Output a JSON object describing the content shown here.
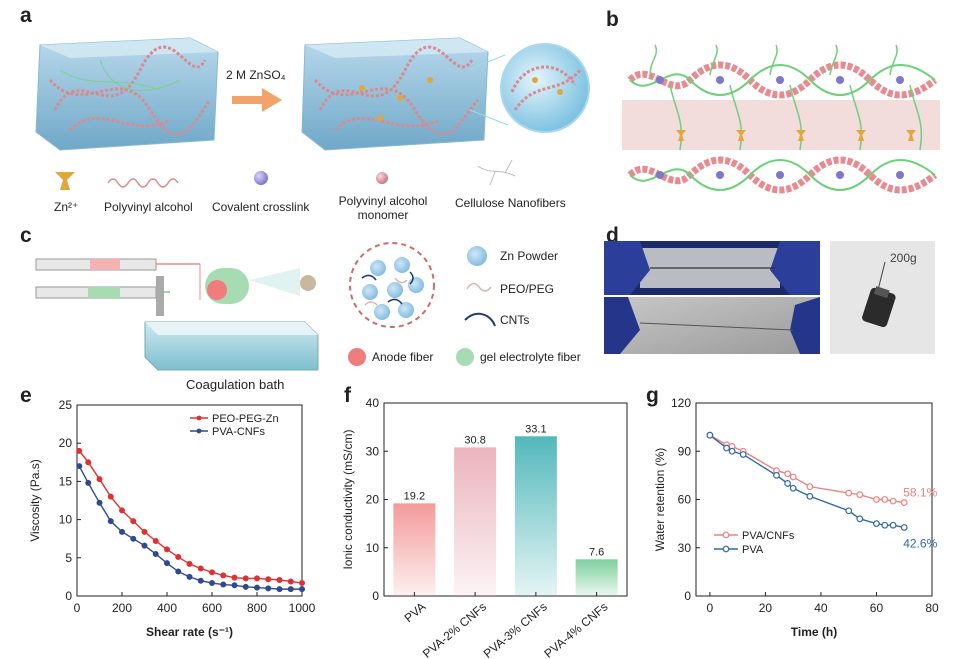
{
  "panels": {
    "a": {
      "letter": "a",
      "arrow_label": "2 M ZnSO₄",
      "legend": [
        "Zn²⁺",
        "Polyvinyl alcohol",
        "Covalent crosslink",
        "Polyvinyl alcohol monomer",
        "Cellulose Nanofibers"
      ]
    },
    "b": {
      "letter": "b"
    },
    "c": {
      "letter": "c",
      "bath_label": "Coagulation bath",
      "legend": [
        "Zn Powder",
        "PEO/PEG",
        "CNTs",
        "Anode fiber",
        "gel electrolyte fiber"
      ]
    },
    "d": {
      "letter": "d",
      "weight_label": "200g"
    },
    "e": {
      "letter": "e"
    },
    "f": {
      "letter": "f"
    },
    "g": {
      "letter": "g"
    }
  },
  "chart_data": [
    {
      "id": "e",
      "type": "line",
      "xlabel": "Shear rate (s⁻¹)",
      "ylabel": "Viscosity (Pa.s)",
      "xlim": [
        0,
        1000
      ],
      "ylim": [
        0,
        25
      ],
      "xticks": [
        "0",
        "200",
        "400",
        "600",
        "800",
        "1000"
      ],
      "yticks": [
        "0",
        "5",
        "10",
        "15",
        "20",
        "25"
      ],
      "legend_position": "top-right",
      "colors": [
        "#e03030",
        "#2f4b8f"
      ],
      "series": [
        {
          "name": "PEO-PEG-Zn",
          "x": [
            10,
            50,
            100,
            150,
            200,
            250,
            300,
            350,
            400,
            450,
            500,
            550,
            600,
            650,
            700,
            750,
            800,
            850,
            900,
            950,
            1000
          ],
          "y": [
            19.0,
            17.5,
            15.3,
            13.0,
            11.2,
            9.8,
            8.4,
            7.2,
            6.1,
            5.1,
            4.2,
            3.6,
            3.1,
            2.7,
            2.4,
            2.3,
            2.3,
            2.2,
            2.1,
            1.9,
            1.7
          ]
        },
        {
          "name": "PVA-CNFs",
          "x": [
            10,
            50,
            100,
            150,
            200,
            250,
            300,
            350,
            400,
            450,
            500,
            550,
            600,
            650,
            700,
            750,
            800,
            850,
            900,
            950,
            1000
          ],
          "y": [
            17.0,
            14.8,
            12.2,
            9.8,
            8.4,
            7.5,
            6.6,
            5.5,
            4.3,
            3.2,
            2.5,
            2.0,
            1.7,
            1.5,
            1.4,
            1.2,
            1.1,
            1.0,
            0.9,
            0.9,
            0.9
          ]
        }
      ]
    },
    {
      "id": "f",
      "type": "bar",
      "ylabel": "Ionic conductivity (mS/cm)",
      "ylim": [
        0,
        40
      ],
      "yticks": [
        "0",
        "10",
        "20",
        "30",
        "40"
      ],
      "categories": [
        "PVA",
        "PVA-2% CNFs",
        "PVA-3% CNFs",
        "PVA-4% CNFs"
      ],
      "values": [
        19.2,
        30.8,
        33.1,
        7.6
      ],
      "value_labels": [
        "19.2",
        "30.8",
        "33.1",
        "7.6"
      ],
      "colors": [
        "#f49a9a",
        "#ebb3bd",
        "#52b8ba",
        "#7dcf9e"
      ]
    },
    {
      "id": "g",
      "type": "line",
      "xlabel": "Time (h)",
      "ylabel": "Water retention (%)",
      "xlim": [
        -5,
        80
      ],
      "ylim": [
        0,
        120
      ],
      "xticks": [
        "0",
        "20",
        "40",
        "60",
        "80"
      ],
      "yticks": [
        "0",
        "30",
        "60",
        "90",
        "120"
      ],
      "legend_position": "bottom-left",
      "colors": [
        "#f08080",
        "#2e6aa8"
      ],
      "annotations": [
        "58.1%",
        "42.6%"
      ],
      "series": [
        {
          "name": "PVA/CNFs",
          "x": [
            0,
            6,
            8,
            12,
            24,
            28,
            30,
            36,
            50,
            54,
            60,
            63,
            66,
            70
          ],
          "y": [
            100,
            94,
            93,
            90,
            78,
            76,
            74,
            68,
            64,
            63,
            60,
            60,
            59,
            58.1
          ]
        },
        {
          "name": "PVA",
          "x": [
            0,
            6,
            8,
            12,
            24,
            28,
            30,
            36,
            50,
            54,
            60,
            63,
            66,
            70
          ],
          "y": [
            100,
            92,
            90,
            88,
            75,
            70,
            67,
            62,
            53,
            48,
            45,
            44,
            44,
            42.6
          ]
        }
      ]
    }
  ]
}
